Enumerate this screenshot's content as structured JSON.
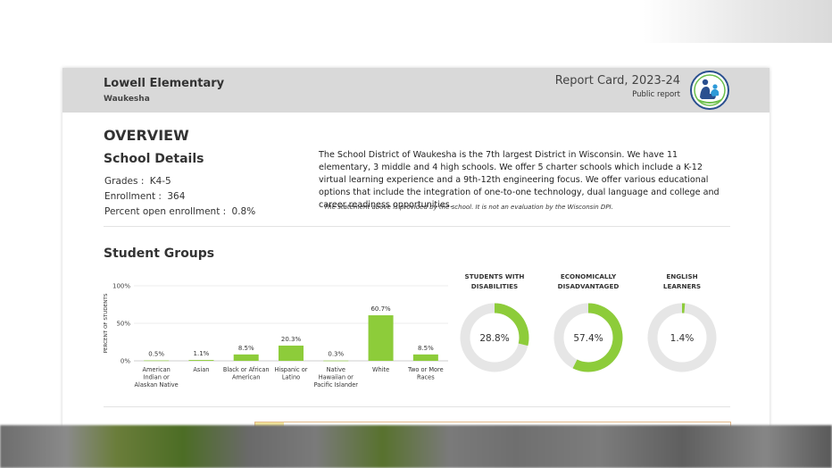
{
  "header": {
    "school_name": "Lowell Elementary",
    "city": "Waukesha",
    "report_title": "Report Card, 2023-24",
    "report_subtitle": "Public report",
    "logo_icon": "dpi-logo-icon"
  },
  "overview": {
    "heading": "OVERVIEW",
    "details_heading": "School Details",
    "details": [
      {
        "label": "Grades :",
        "value": "K4-5"
      },
      {
        "label": "Enrollment :",
        "value": "364"
      },
      {
        "label": "Percent open enrollment :",
        "value": "0.8%"
      }
    ],
    "description": "The School District of Waukesha is the 7th largest District in Wisconsin. We have 11 elementary, 3 middle and 4 high schools. We offer 5 charter schools which include a K-12 virtual learning experience and a 9th-12th engineering focus. We offer various educational options that include the integration of one-to-one technology, dual language and college and career readiness opportunities.",
    "disclaimer": "The statement above is provided by the school. It is not an evaluation by the Wisconsin DPI."
  },
  "student_groups": {
    "heading": "Student Groups",
    "donuts": [
      {
        "label_line1": "STUDENTS WITH",
        "label_line2": "DISABILITIES",
        "value": 28.8,
        "text": "28.8%"
      },
      {
        "label_line1": "ECONOMICALLY",
        "label_line2": "DISADVANTAGED",
        "value": 57.4,
        "text": "57.4%"
      },
      {
        "label_line1": "ENGLISH",
        "label_line2": "LEARNERS",
        "value": 1.4,
        "text": "1.4%"
      }
    ]
  },
  "colors": {
    "accent_green": "#8dcc3a",
    "donut_track": "#e6e6e6",
    "header_gray": "#d9d9d9"
  },
  "chart_data": {
    "type": "bar",
    "ylabel": "PERCENT OF STUDENTS",
    "ylim": [
      0,
      100
    ],
    "yticks": [
      "100%",
      "50%",
      "0%"
    ],
    "categories": [
      [
        "American",
        "Indian or",
        "Alaskan Native"
      ],
      [
        "Asian"
      ],
      [
        "Black or African",
        "American"
      ],
      [
        "Hispanic or",
        "Latino"
      ],
      [
        "Native",
        "Hawaiian or",
        "Pacific Islander"
      ],
      [
        "White"
      ],
      [
        "Two or More",
        "Races"
      ]
    ],
    "values": [
      0.5,
      1.1,
      8.5,
      20.3,
      0.3,
      60.7,
      8.5
    ],
    "value_labels": [
      "0.5%",
      "1.1%",
      "8.5%",
      "20.3%",
      "0.3%",
      "60.7%",
      "8.5%"
    ]
  }
}
